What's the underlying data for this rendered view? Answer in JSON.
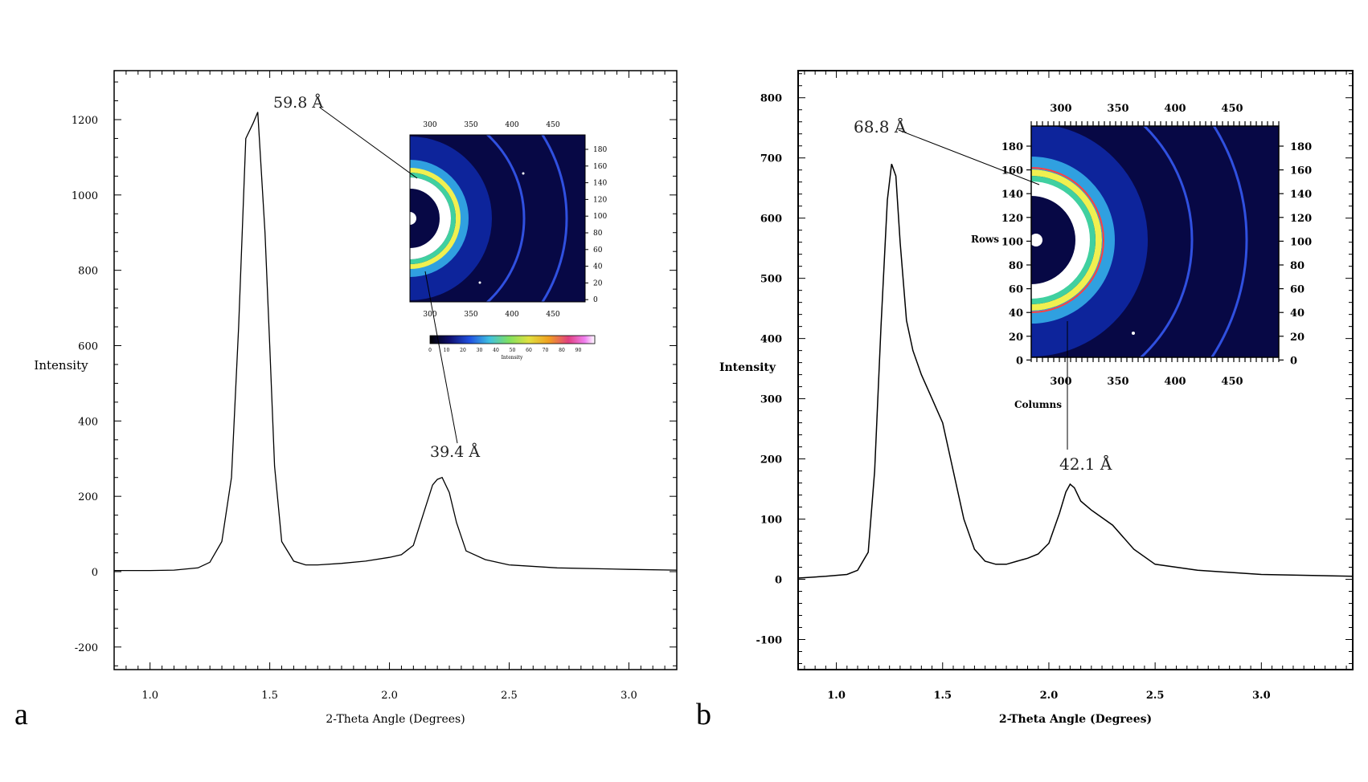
{
  "chart_data": [
    {
      "type": "line",
      "panel_label": "a",
      "xlabel": "2-Theta Angle (Degrees)",
      "ylabel": "Intensity",
      "xlim": [
        0.85,
        3.2
      ],
      "ylim": [
        -260,
        1330
      ],
      "xticks": [
        1.0,
        1.5,
        2.0,
        2.5,
        3.0
      ],
      "xtick_labels": [
        "1.0",
        "1.5",
        "2.0",
        "2.5",
        "3.0"
      ],
      "yticks": [
        -200,
        0,
        200,
        400,
        600,
        800,
        1000,
        1200
      ],
      "ytick_labels": [
        "-200",
        "0",
        "200",
        "400",
        "600",
        "800",
        "1000",
        "1200"
      ],
      "series": [
        {
          "x": [
            0.85,
            1.0,
            1.1,
            1.2,
            1.25,
            1.3,
            1.34,
            1.37,
            1.4,
            1.43,
            1.45,
            1.48,
            1.5,
            1.52,
            1.55,
            1.6,
            1.65,
            1.7,
            1.8,
            1.9,
            2.0,
            2.05,
            2.1,
            2.15,
            2.18,
            2.2,
            2.22,
            2.25,
            2.28,
            2.32,
            2.4,
            2.5,
            2.7,
            3.0,
            3.2
          ],
          "y": [
            3,
            3,
            4,
            10,
            25,
            80,
            250,
            650,
            1150,
            1190,
            1220,
            900,
            600,
            280,
            80,
            28,
            18,
            18,
            22,
            28,
            38,
            45,
            70,
            170,
            230,
            245,
            250,
            210,
            130,
            55,
            32,
            18,
            10,
            6,
            4
          ]
        }
      ],
      "annotations": [
        {
          "text": "59.8 Å",
          "x": 1.45,
          "y": 1225
        },
        {
          "text": "39.4 Å",
          "x": 2.22,
          "y": 250
        }
      ],
      "inset": {
        "top_ticks": [
          "300",
          "350",
          "400",
          "450"
        ],
        "bottom_ticks": [
          "300",
          "350",
          "400",
          "450"
        ],
        "right_ticks": [
          "180",
          "160",
          "140",
          "120",
          "100",
          "80",
          "60",
          "40",
          "20",
          "0"
        ],
        "colorbar_ticks": [
          "0",
          "10",
          "20",
          "30",
          "40",
          "50",
          "60",
          "70",
          "80",
          "90"
        ],
        "colorbar_label": "Intensity"
      }
    },
    {
      "type": "line",
      "panel_label": "b",
      "xlabel": "2-Theta Angle (Degrees)",
      "ylabel": "Intensity",
      "xlim": [
        0.82,
        3.43
      ],
      "ylim": [
        -150,
        845
      ],
      "xticks": [
        1.0,
        1.5,
        2.0,
        2.5,
        3.0
      ],
      "xtick_labels": [
        "1.0",
        "1.5",
        "2.0",
        "2.5",
        "3.0"
      ],
      "yticks": [
        -100,
        0,
        100,
        200,
        300,
        400,
        500,
        600,
        700,
        800
      ],
      "ytick_labels": [
        "-100",
        "0",
        "100",
        "200",
        "300",
        "400",
        "500",
        "600",
        "700",
        "800"
      ],
      "series": [
        {
          "x": [
            0.82,
            0.95,
            1.05,
            1.1,
            1.15,
            1.18,
            1.21,
            1.24,
            1.26,
            1.28,
            1.3,
            1.33,
            1.36,
            1.4,
            1.45,
            1.5,
            1.55,
            1.6,
            1.65,
            1.7,
            1.75,
            1.8,
            1.85,
            1.9,
            1.95,
            2.0,
            2.05,
            2.08,
            2.1,
            2.12,
            2.15,
            2.2,
            2.3,
            2.35,
            2.4,
            2.5,
            2.7,
            3.0,
            3.43
          ],
          "y": [
            2,
            5,
            8,
            15,
            45,
            180,
            420,
            630,
            690,
            670,
            560,
            430,
            380,
            340,
            300,
            260,
            180,
            100,
            50,
            30,
            25,
            25,
            30,
            35,
            42,
            60,
            110,
            145,
            158,
            152,
            130,
            115,
            90,
            70,
            50,
            25,
            15,
            8,
            5
          ]
        }
      ],
      "annotations": [
        {
          "text": "68.8 Å",
          "x": 1.28,
          "y": 690
        },
        {
          "text": "42.1 Å",
          "x": 2.1,
          "y": 158
        }
      ],
      "inset": {
        "top_ticks": [
          "300",
          "350",
          "400",
          "450"
        ],
        "bottom_ticks": [
          "300",
          "350",
          "400",
          "450"
        ],
        "left_ticks": [
          "180",
          "160",
          "140",
          "120",
          "100",
          "80",
          "60",
          "40",
          "20",
          "0"
        ],
        "right_ticks": [
          "180",
          "160",
          "140",
          "120",
          "100",
          "80",
          "60",
          "40",
          "20",
          "0"
        ],
        "left_label": "Rows",
        "bottom_label": "Columns"
      }
    }
  ]
}
